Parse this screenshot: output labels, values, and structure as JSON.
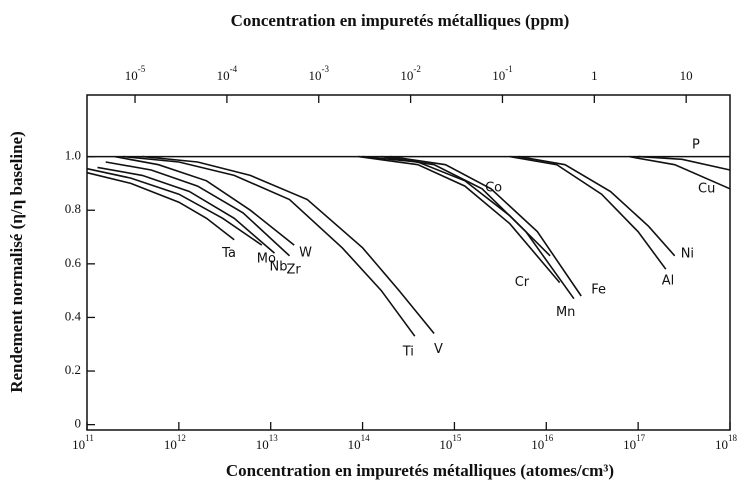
{
  "chart_data": {
    "type": "line",
    "title": "Concentration en impuretés métalliques (ppm)",
    "x_label": "Concentration en impuretés métalliques (atomes/cm³)",
    "y_label": "Rendement normalisé (η/η baseline)",
    "xscale": "log",
    "xlim": [
      100000000000.0,
      1e+18
    ],
    "xticks": [
      {
        "value": 100000000000.0,
        "label": "10",
        "exponent": "11"
      },
      {
        "value": 1000000000000.0,
        "label": "10",
        "exponent": "12"
      },
      {
        "value": 10000000000000.0,
        "label": "10",
        "exponent": "13"
      },
      {
        "value": 100000000000000.0,
        "label": "10",
        "exponent": "14"
      },
      {
        "value": 1000000000000000.0,
        "label": "10",
        "exponent": "15"
      },
      {
        "value": 1e+16,
        "label": "10",
        "exponent": "16"
      },
      {
        "value": 1e+17,
        "label": "10",
        "exponent": "17"
      },
      {
        "value": 1e+18,
        "label": "10",
        "exponent": "18"
      }
    ],
    "x2lim": [
      3e-06,
      30
    ],
    "x2ticks": [
      {
        "value": 1e-05,
        "label": "10",
        "exponent": "-5"
      },
      {
        "value": 0.0001,
        "label": "10",
        "exponent": "-4"
      },
      {
        "value": 0.001,
        "label": "10",
        "exponent": "-3"
      },
      {
        "value": 0.01,
        "label": "10",
        "exponent": "-2"
      },
      {
        "value": 0.1,
        "label": "10",
        "exponent": "-1"
      },
      1,
      10
    ],
    "ylim": [
      -0.02,
      1.23
    ],
    "yticks": [
      0,
      0.2,
      0.4,
      0.6,
      0.8,
      {
        "value": 1,
        "label": "1.0"
      }
    ],
    "reference_line": 1,
    "color": "#111111",
    "series": [
      {
        "name": "Ta",
        "x": [
          100000000000.0,
          300000000000.0,
          1000000000000.0,
          2000000000000.0,
          4000000000000.0
        ],
        "values": [
          0.94,
          0.9,
          0.83,
          0.77,
          0.69
        ]
      },
      {
        "name": "Mo",
        "x": [
          100000000000.0,
          300000000000.0,
          1000000000000.0,
          3000000000000.0,
          8000000000000.0
        ],
        "values": [
          0.955,
          0.92,
          0.86,
          0.77,
          0.67
        ]
      },
      {
        "name": "Nb",
        "x": [
          130000000000.0,
          400000000000.0,
          1300000000000.0,
          4000000000000.0,
          11000000000000.0
        ],
        "values": [
          0.96,
          0.93,
          0.87,
          0.77,
          0.64
        ]
      },
      {
        "name": "Zr",
        "x": [
          160000000000.0,
          500000000000.0,
          1600000000000.0,
          5000000000000.0,
          16000000000000.0
        ],
        "values": [
          0.98,
          0.95,
          0.89,
          0.79,
          0.63
        ]
      },
      {
        "name": "W",
        "x": [
          200000000000.0,
          600000000000.0,
          2000000000000.0,
          6000000000000.0,
          18000000000000.0
        ],
        "values": [
          1,
          0.97,
          0.91,
          0.8,
          0.67
        ]
      },
      {
        "name": "Ti",
        "x": [
          250000000000.0,
          1000000000000.0,
          4000000000000.0,
          16000000000000.0,
          60000000000000.0,
          160000000000000.0,
          370000000000000.0
        ],
        "values": [
          1,
          0.98,
          0.93,
          0.84,
          0.66,
          0.5,
          0.33
        ]
      },
      {
        "name": "V",
        "x": [
          400000000000.0,
          1600000000000.0,
          6000000000000.0,
          25000000000000.0,
          100000000000000.0,
          250000000000000.0,
          600000000000000.0
        ],
        "values": [
          1,
          0.98,
          0.93,
          0.84,
          0.66,
          0.5,
          0.34
        ]
      },
      {
        "name": "Co",
        "x": [
          100000000000000.0,
          400000000000000.0,
          1300000000000000.0,
          4000000000000000.0,
          1.1e+16
        ],
        "values": [
          1,
          0.98,
          0.91,
          0.78,
          0.63
        ]
      },
      {
        "name": "Cr",
        "x": [
          90000000000000.0,
          400000000000000.0,
          1300000000000000.0,
          4000000000000000.0,
          1.4e+16
        ],
        "values": [
          1,
          0.97,
          0.89,
          0.75,
          0.53
        ]
      },
      {
        "name": "Mn",
        "x": [
          160000000000000.0,
          600000000000000.0,
          2000000000000000.0,
          6000000000000000.0,
          2e+16
        ],
        "values": [
          1,
          0.97,
          0.88,
          0.72,
          0.47
        ]
      },
      {
        "name": "Fe",
        "x": [
          200000000000000.0,
          800000000000000.0,
          2500000000000000.0,
          8000000000000000.0,
          2.4e+16
        ],
        "values": [
          1,
          0.97,
          0.88,
          0.72,
          0.48
        ]
      },
      {
        "name": "Al",
        "x": [
          4000000000000000.0,
          1.3e+16,
          4e+16,
          1e+17,
          2e+17
        ],
        "values": [
          1,
          0.97,
          0.86,
          0.72,
          0.58
        ]
      },
      {
        "name": "Ni",
        "x": [
          5000000000000000.0,
          1.6e+16,
          5e+16,
          1.3e+17,
          2.5e+17
        ],
        "values": [
          1,
          0.97,
          0.87,
          0.74,
          0.63
        ]
      },
      {
        "name": "P",
        "x": [
          1e+17,
          3e+17,
          1e+18
        ],
        "values": [
          1,
          0.99,
          0.95
        ]
      },
      {
        "name": "Cu",
        "x": [
          8e+16,
          2.5e+17,
          1e+18
        ],
        "values": [
          1,
          0.97,
          0.88
        ]
      }
    ]
  }
}
